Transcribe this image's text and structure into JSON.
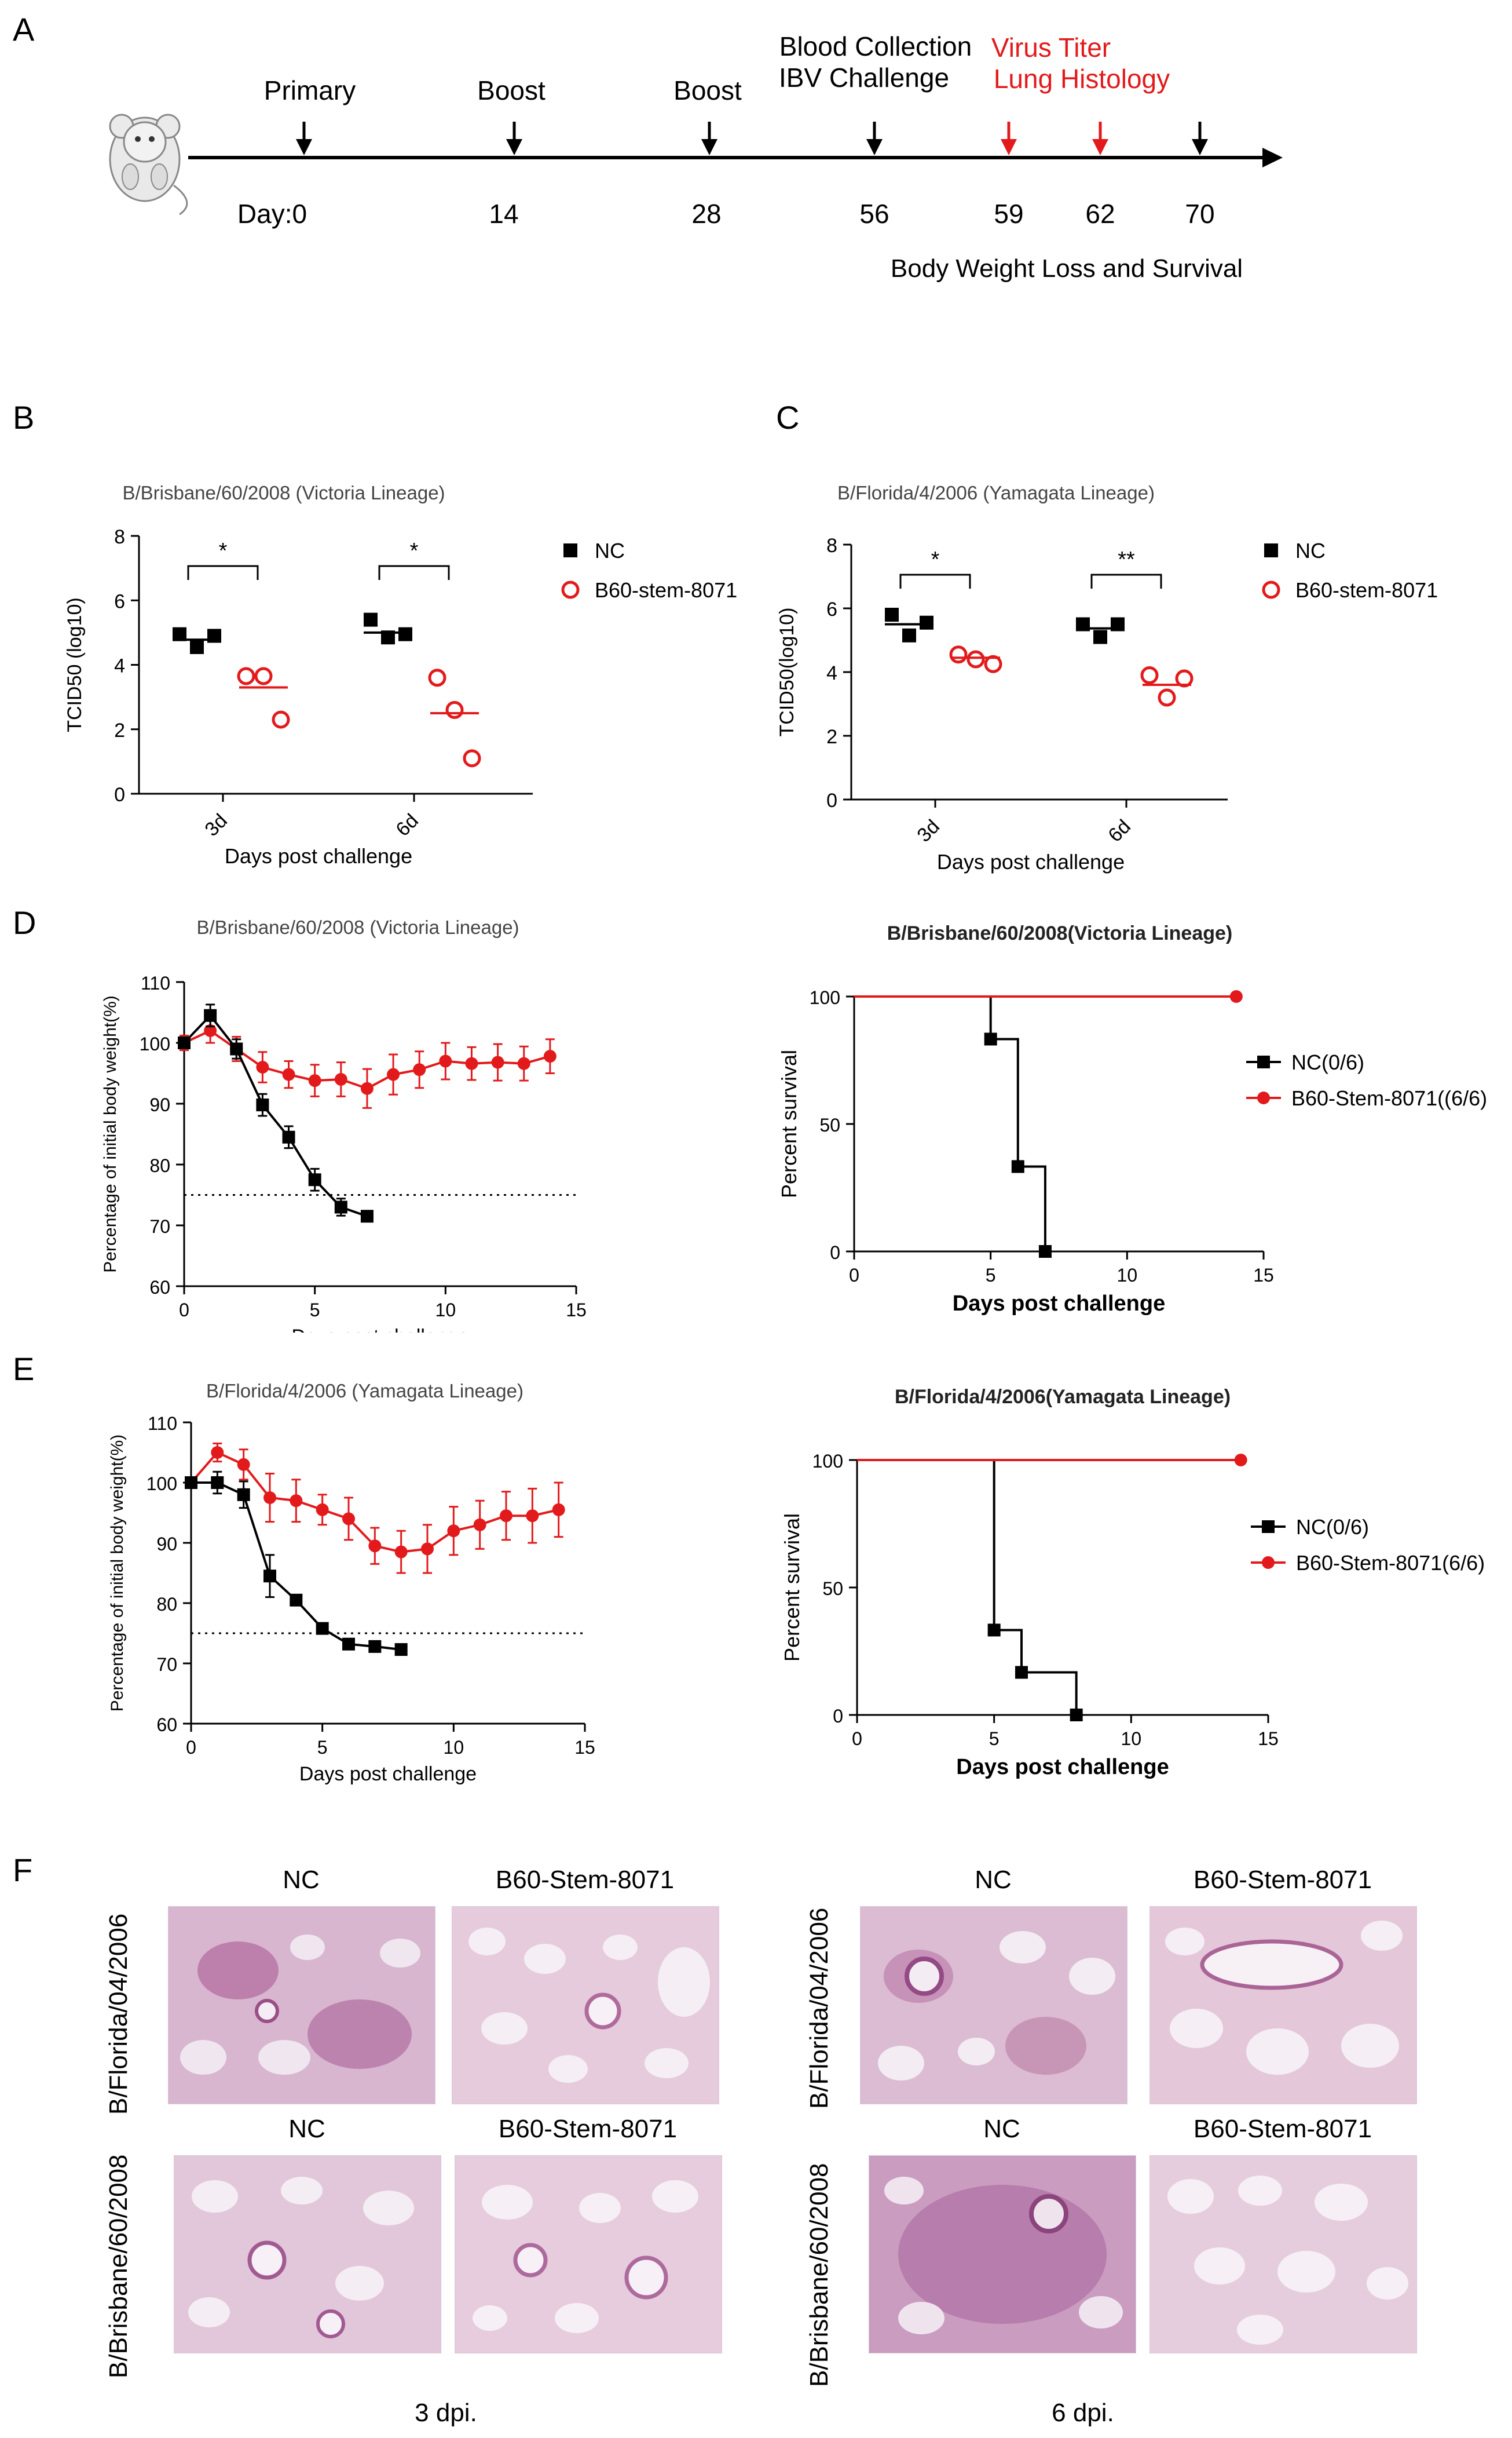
{
  "panels": {
    "a": "A",
    "b": "B",
    "c": "C",
    "d": "D",
    "e": "E",
    "f": "F"
  },
  "timeline": {
    "day_prefix": "Day:",
    "events": [
      {
        "day": 0,
        "label": "Primary",
        "color": "#000000"
      },
      {
        "day": 14,
        "label": "Boost",
        "color": "#000000"
      },
      {
        "day": 28,
        "label": "Boost",
        "color": "#000000"
      },
      {
        "day": 56,
        "label": "Blood Collection",
        "label2": "IBV Challenge",
        "color": "#000000"
      },
      {
        "day": 59,
        "label": "Virus Titer",
        "color": "#e31a1c"
      },
      {
        "day": 62,
        "label": "Lung Histology",
        "color": "#e31a1c"
      },
      {
        "day": 70,
        "label": "",
        "color": "#000000"
      }
    ],
    "footer": "Body Weight Loss and Survival"
  },
  "chart_data": [
    {
      "id": "B",
      "type": "scatter",
      "title": "B/Brisbane/60/2008 (Victoria Lineage)",
      "xlabel": "Days post challenge",
      "ylabel": "TCID50 (log10)",
      "ylim": [
        0,
        8
      ],
      "yticks": [
        0,
        2,
        4,
        6,
        8
      ],
      "categories": [
        "3d",
        "6d"
      ],
      "series": [
        {
          "name": "NC",
          "color": "#000000",
          "marker": "square",
          "points": [
            [
              4.95,
              4.55,
              4.9
            ],
            [
              5.4,
              4.85,
              4.95
            ]
          ],
          "means": [
            4.78,
            5.0
          ]
        },
        {
          "name": "B60-stem-8071",
          "color": "#e31a1c",
          "marker": "circle-open",
          "points": [
            [
              3.65,
              3.65,
              2.3
            ],
            [
              3.6,
              2.6,
              1.1
            ]
          ],
          "means": [
            3.3,
            2.5
          ]
        }
      ],
      "significance": [
        "*",
        "*"
      ]
    },
    {
      "id": "C",
      "type": "scatter",
      "title": "B/Florida/4/2006 (Yamagata Lineage)",
      "xlabel": "Days post challenge",
      "ylabel": "TCID50(log10)",
      "ylim": [
        0,
        8
      ],
      "yticks": [
        0,
        2,
        4,
        6,
        8
      ],
      "categories": [
        "3d",
        "6d"
      ],
      "series": [
        {
          "name": "NC",
          "color": "#000000",
          "marker": "square",
          "points": [
            [
              5.8,
              5.15,
              5.55
            ],
            [
              5.5,
              5.1,
              5.5
            ]
          ],
          "means": [
            5.5,
            5.37
          ]
        },
        {
          "name": "B60-stem-8071",
          "color": "#e31a1c",
          "marker": "circle-open",
          "points": [
            [
              4.55,
              4.4,
              4.25
            ],
            [
              3.9,
              3.2,
              3.8
            ]
          ],
          "means": [
            4.45,
            3.6
          ]
        }
      ],
      "significance": [
        "*",
        "**"
      ]
    },
    {
      "id": "D1",
      "type": "line",
      "title": "B/Brisbane/60/2008 (Victoria Lineage)",
      "xlabel": "Days post challenge",
      "ylabel": "Percentage of initial body weight(%)",
      "xlim": [
        0,
        15
      ],
      "xticks": [
        0,
        5,
        10,
        15
      ],
      "ylim": [
        60,
        110
      ],
      "yticks": [
        60,
        70,
        80,
        90,
        100,
        110
      ],
      "reference_line": 75,
      "series": [
        {
          "name": "NC",
          "color": "#000000",
          "marker": "square",
          "x": [
            0,
            1,
            2,
            3,
            4,
            5,
            6,
            7
          ],
          "y": [
            100,
            104.5,
            99,
            89.8,
            84.5,
            77.5,
            73,
            71.5
          ],
          "err": [
            0.8,
            1.8,
            1.6,
            1.8,
            1.8,
            1.8,
            1.4,
            0
          ]
        },
        {
          "name": "B60-stem-8071",
          "color": "#e31a1c",
          "marker": "circle",
          "x": [
            0,
            1,
            2,
            3,
            4,
            5,
            6,
            7,
            8,
            9,
            10,
            11,
            12,
            13,
            14
          ],
          "y": [
            100,
            102,
            99,
            96,
            94.8,
            93.8,
            94,
            92.5,
            94.8,
            95.6,
            97,
            96.6,
            96.8,
            96.6,
            97.8
          ],
          "err": [
            1.2,
            2.0,
            2.0,
            2.5,
            2.2,
            2.6,
            2.8,
            3.2,
            3.3,
            3.0,
            3.0,
            2.7,
            3.0,
            2.8,
            2.8
          ]
        }
      ]
    },
    {
      "id": "D2",
      "type": "line",
      "title": "B/Brisbane/60/2008(Victoria Lineage)",
      "xlabel": "Days post challenge",
      "ylabel": "Percent survival",
      "xlim": [
        0,
        15
      ],
      "xticks": [
        0,
        5,
        10,
        15
      ],
      "ylim": [
        0,
        100
      ],
      "yticks": [
        0,
        50,
        100
      ],
      "series": [
        {
          "name": "NC(0/6)",
          "color": "#000000",
          "marker": "square",
          "x": [
            5,
            6,
            7
          ],
          "y": [
            83.3,
            33.3,
            0
          ]
        },
        {
          "name": "B60-Stem-8071((6/6)",
          "color": "#e31a1c",
          "marker": "circle",
          "x": [
            14
          ],
          "y": [
            100
          ]
        }
      ]
    },
    {
      "id": "E1",
      "type": "line",
      "title": "B/Florida/4/2006 (Yamagata Lineage)",
      "xlabel": "Days post challenge",
      "ylabel": "Percentage of initial body weight(%)",
      "xlim": [
        0,
        15
      ],
      "xticks": [
        0,
        5,
        10,
        15
      ],
      "ylim": [
        60,
        110
      ],
      "yticks": [
        60,
        70,
        80,
        90,
        100,
        110
      ],
      "reference_line": 75,
      "series": [
        {
          "name": "NC",
          "color": "#000000",
          "marker": "square",
          "x": [
            0,
            1,
            2,
            3,
            4,
            5,
            6,
            7,
            8
          ],
          "y": [
            100,
            100,
            98,
            84.5,
            80.5,
            75.8,
            73.2,
            72.8,
            72.3
          ],
          "err": [
            0.5,
            1.8,
            2.2,
            3.5,
            0.8,
            0.5,
            0.6,
            0.5,
            0
          ]
        },
        {
          "name": "B60-stem-8071",
          "color": "#e31a1c",
          "marker": "circle",
          "x": [
            0,
            1,
            2,
            3,
            4,
            5,
            6,
            7,
            8,
            9,
            10,
            11,
            12,
            13,
            14
          ],
          "y": [
            100,
            105,
            103,
            97.5,
            97,
            95.5,
            94,
            89.5,
            88.5,
            89,
            92,
            93,
            94.5,
            94.5,
            95.5
          ],
          "err": [
            0.8,
            1.5,
            2.5,
            4,
            3.5,
            2.5,
            3.5,
            3,
            3.5,
            4,
            4,
            4,
            4,
            4.5,
            4.5
          ]
        }
      ]
    },
    {
      "id": "E2",
      "type": "line",
      "title": "B/Florida/4/2006(Yamagata Lineage)",
      "xlabel": "Days post challenge",
      "ylabel": "Percent survival",
      "xlim": [
        0,
        15
      ],
      "xticks": [
        0,
        5,
        10,
        15
      ],
      "ylim": [
        0,
        100
      ],
      "yticks": [
        0,
        50,
        100
      ],
      "series": [
        {
          "name": "NC(0/6)",
          "color": "#000000",
          "marker": "square",
          "x": [
            5,
            6,
            8
          ],
          "y": [
            33.3,
            16.7,
            0
          ]
        },
        {
          "name": "B60-Stem-8071(6/6)",
          "color": "#e31a1c",
          "marker": "circle",
          "x": [
            14
          ],
          "y": [
            100
          ]
        }
      ]
    }
  ],
  "histology": {
    "left_group": {
      "row_labels": [
        "B/Florida/04/2006",
        "B/Brisbane/60/2008"
      ],
      "col_labels": [
        "NC",
        "B60-Stem-8071",
        "NC",
        "B60-Stem-8071"
      ],
      "footer": "3 dpi."
    },
    "right_group": {
      "row_labels": [
        "B/Florida/04/2006",
        "B/Brisbane/60/2008"
      ],
      "col_labels": [
        "NC",
        "B60-Stem-8071",
        "NC",
        "B60-Stem-8071"
      ],
      "footer": "6 dpi."
    }
  }
}
